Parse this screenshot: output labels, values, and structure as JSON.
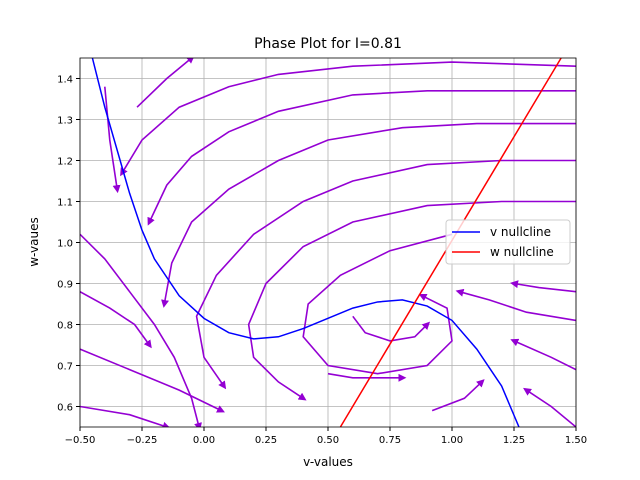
{
  "chart_data": {
    "type": "line",
    "title": "Phase Plot for I=0.81",
    "x_label": "v-values",
    "y_label": "w-vaues",
    "xlim": [
      -0.5,
      1.5
    ],
    "ylim": [
      0.55,
      1.45
    ],
    "xticks": [
      {
        "value": -0.5,
        "label": "−0.50"
      },
      {
        "value": -0.25,
        "label": "−0.25"
      },
      {
        "value": 0,
        "label": "0.00"
      },
      0.25,
      {
        "value": 0.5,
        "label": "0.50"
      },
      0.75,
      {
        "value": 1,
        "label": "1.00"
      },
      1.25,
      {
        "value": 1.5,
        "label": "1.50"
      }
    ],
    "yticks": [
      0.6,
      0.7,
      0.8,
      0.9,
      {
        "value": 1,
        "label": "1.0"
      },
      1.1,
      1.2,
      1.3,
      1.4
    ],
    "grid": true,
    "legend": "right",
    "series": [
      {
        "name": "v nullcline",
        "color": "#0000ff",
        "x": [
          -0.45,
          -0.4,
          -0.3,
          -0.25,
          -0.2,
          -0.1,
          0,
          0.1,
          0.2,
          0.3,
          0.4,
          0.5,
          0.6,
          0.7,
          0.8,
          0.9,
          1.0,
          1.1,
          1.2,
          1.27
        ],
        "y": [
          1.45,
          1.33,
          1.12,
          1.03,
          0.96,
          0.87,
          0.815,
          0.78,
          0.765,
          0.77,
          0.79,
          0.815,
          0.84,
          0.855,
          0.86,
          0.845,
          0.81,
          0.74,
          0.65,
          0.55
        ]
      },
      {
        "name": "w nullcline",
        "color": "#ff0000",
        "x": [
          0.55,
          1.44
        ],
        "y": [
          0.55,
          1.45
        ]
      }
    ],
    "streamline_color": "#9400d3",
    "streamlines": [
      {
        "x": [
          1.5,
          1.2,
          0.9,
          0.6,
          0.3,
          0.1,
          -0.05,
          -0.15,
          -0.22
        ],
        "y": [
          1.37,
          1.37,
          1.37,
          1.36,
          1.32,
          1.27,
          1.21,
          1.14,
          1.05
        ]
      },
      {
        "x": [
          1.5,
          1.0,
          0.6,
          0.3,
          0.1,
          -0.1,
          -0.25,
          -0.33
        ],
        "y": [
          1.43,
          1.44,
          1.43,
          1.41,
          1.38,
          1.33,
          1.25,
          1.17
        ]
      },
      {
        "x": [
          1.5,
          1.1,
          0.8,
          0.5,
          0.3,
          0.1,
          -0.05,
          -0.13,
          -0.16
        ],
        "y": [
          1.29,
          1.29,
          1.28,
          1.25,
          1.2,
          1.13,
          1.05,
          0.95,
          0.85
        ]
      },
      {
        "x": [
          1.5,
          1.2,
          0.9,
          0.6,
          0.4,
          0.2,
          0.05,
          -0.03,
          0.0,
          0.08
        ],
        "y": [
          1.2,
          1.2,
          1.19,
          1.15,
          1.1,
          1.02,
          0.92,
          0.82,
          0.72,
          0.65
        ]
      },
      {
        "x": [
          1.5,
          1.2,
          0.9,
          0.6,
          0.4,
          0.25,
          0.18,
          0.2,
          0.3,
          0.4
        ],
        "y": [
          1.1,
          1.1,
          1.09,
          1.05,
          0.99,
          0.9,
          0.8,
          0.72,
          0.66,
          0.62
        ]
      },
      {
        "x": [
          1.0,
          0.75,
          0.55,
          0.42,
          0.4,
          0.5,
          0.7,
          0.9,
          1.0,
          0.98,
          0.88
        ],
        "y": [
          1.02,
          0.98,
          0.92,
          0.85,
          0.77,
          0.7,
          0.68,
          0.7,
          0.76,
          0.84,
          0.87
        ]
      },
      {
        "x": [
          0.6,
          0.65,
          0.75,
          0.85,
          0.9
        ],
        "y": [
          0.82,
          0.78,
          0.76,
          0.77,
          0.8
        ]
      },
      {
        "x": [
          -0.5,
          -0.4,
          -0.3,
          -0.2,
          -0.12,
          -0.05,
          -0.02
        ],
        "y": [
          1.02,
          0.96,
          0.88,
          0.8,
          0.72,
          0.62,
          0.55
        ]
      },
      {
        "x": [
          -0.5,
          -0.38,
          -0.28,
          -0.22
        ],
        "y": [
          0.88,
          0.84,
          0.8,
          0.75
        ]
      },
      {
        "x": [
          -0.5,
          -0.3,
          -0.1,
          0.07
        ],
        "y": [
          0.74,
          0.69,
          0.64,
          0.59
        ]
      },
      {
        "x": [
          -0.5,
          -0.3,
          -0.15
        ],
        "y": [
          0.6,
          0.58,
          0.55
        ]
      },
      {
        "x": [
          1.5,
          1.3,
          1.15,
          1.03
        ],
        "y": [
          0.81,
          0.83,
          0.86,
          0.88
        ]
      },
      {
        "x": [
          1.5,
          1.35,
          1.25
        ],
        "y": [
          0.88,
          0.89,
          0.9
        ]
      },
      {
        "x": [
          1.5,
          1.4,
          1.25
        ],
        "y": [
          0.69,
          0.72,
          0.76
        ]
      },
      {
        "x": [
          1.5,
          1.4,
          1.3
        ],
        "y": [
          0.55,
          0.6,
          0.64
        ]
      },
      {
        "x": [
          0.5,
          0.6,
          0.8
        ],
        "y": [
          0.68,
          0.67,
          0.67
        ]
      },
      {
        "x": [
          0.92,
          1.05,
          1.12
        ],
        "y": [
          0.59,
          0.62,
          0.66
        ]
      },
      {
        "x": [
          -0.27,
          -0.15,
          -0.05
        ],
        "y": [
          1.33,
          1.4,
          1.45
        ]
      },
      {
        "x": [
          -0.4,
          -0.38,
          -0.35
        ],
        "y": [
          1.38,
          1.25,
          1.13
        ]
      }
    ]
  }
}
